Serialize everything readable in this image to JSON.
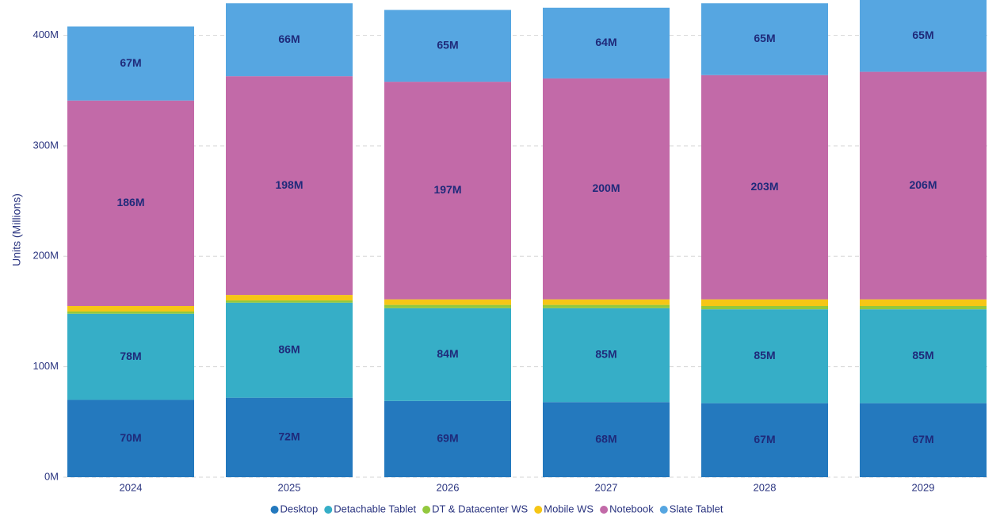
{
  "chart_data": {
    "type": "stacked-bar",
    "y_label": "Units (Millions)",
    "categories": [
      "2024",
      "2025",
      "2026",
      "2027",
      "2028",
      "2029"
    ],
    "series": [
      {
        "name": "Desktop",
        "color": "#2479be",
        "values": [
          70,
          72,
          69,
          68,
          67,
          67
        ],
        "value_labels": [
          "70M",
          "72M",
          "69M",
          "68M",
          "67M",
          "67M"
        ]
      },
      {
        "name": "Detachable Tablet",
        "color": "#36aec7",
        "values": [
          78,
          86,
          84,
          85,
          85,
          85
        ],
        "value_labels": [
          "78M",
          "86M",
          "84M",
          "85M",
          "85M",
          "85M"
        ]
      },
      {
        "name": "DT & Datacenter WS",
        "color": "#93c83e",
        "values": [
          2,
          2,
          3,
          3,
          3,
          3
        ]
      },
      {
        "name": "Mobile WS",
        "color": "#f6c615",
        "values": [
          5,
          5,
          5,
          5,
          6,
          6
        ]
      },
      {
        "name": "Notebook",
        "color": "#c26aa8",
        "values": [
          186,
          198,
          197,
          200,
          203,
          206
        ],
        "value_labels": [
          "186M",
          "198M",
          "197M",
          "200M",
          "203M",
          "206M"
        ]
      },
      {
        "name": "Slate Tablet",
        "color": "#56a6e1",
        "values": [
          67,
          66,
          65,
          64,
          65,
          65
        ],
        "value_labels": [
          "67M",
          "66M",
          "65M",
          "64M",
          "65M",
          "65M"
        ]
      }
    ],
    "ylim": [
      0,
      432
    ],
    "yticks": [
      {
        "value": 0,
        "label": "0M"
      },
      {
        "value": 100,
        "label": "100M"
      },
      {
        "value": 200,
        "label": "200M"
      },
      {
        "value": 300,
        "label": "300M"
      },
      {
        "value": 400,
        "label": "400M"
      }
    ],
    "grid": true,
    "legend": "bottom"
  }
}
